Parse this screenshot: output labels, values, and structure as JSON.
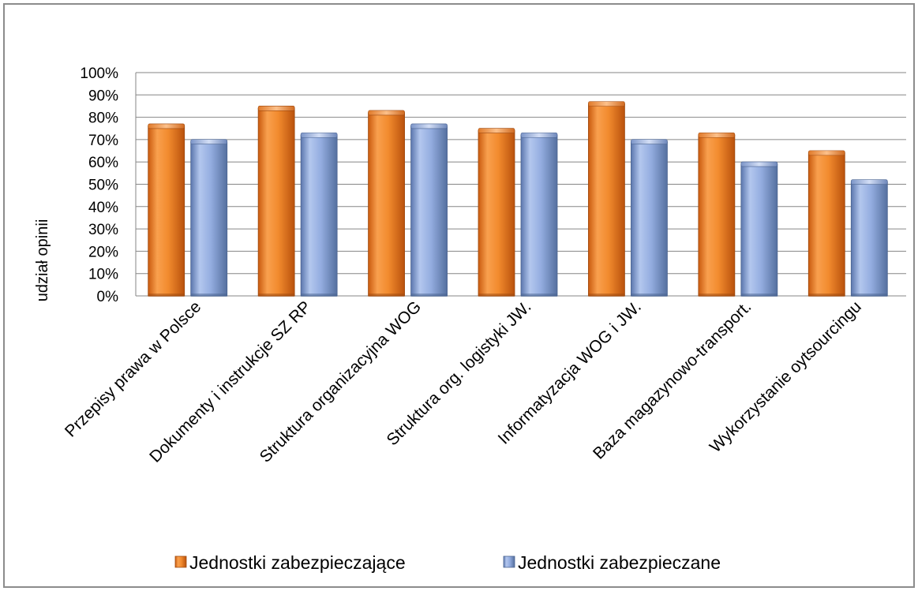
{
  "chart_data": {
    "type": "bar",
    "title": "",
    "xlabel": "",
    "ylabel": "udział opinii",
    "ylim": [
      0,
      100
    ],
    "y_unit": "%",
    "y_ticks": [
      "0%",
      "10%",
      "20%",
      "30%",
      "40%",
      "50%",
      "60%",
      "70%",
      "80%",
      "90%",
      "100%"
    ],
    "categories": [
      "Przepisy prawa w Polsce",
      "Dokumenty i instrukcje SZ RP",
      "Struktura organizacyjna WOG",
      "Struktura org. logistyki JW.",
      "Informatyzacja WOG i JW.",
      "Baza magazynowo-transport.",
      "Wykorzystanie oytsourcingu"
    ],
    "series": [
      {
        "name": "Jednostki zabezpieczające",
        "color": "#f08a2c",
        "values": [
          76,
          84,
          82,
          74,
          86,
          72,
          64
        ]
      },
      {
        "name": "Jednostki zabezpieczane",
        "color": "#8ea9dc",
        "values": [
          69,
          72,
          76,
          72,
          69,
          59,
          51
        ]
      }
    ],
    "grid": true,
    "legend_position": "bottom"
  }
}
